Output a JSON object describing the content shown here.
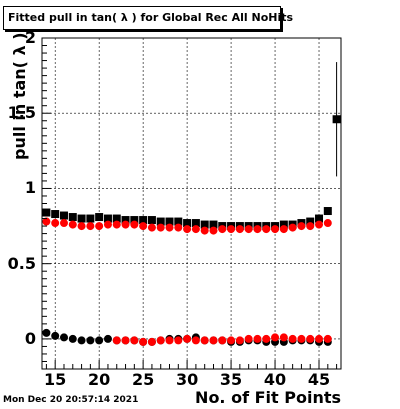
{
  "chart_data": {
    "type": "scatter",
    "title": "Fitted pull in tan( λ ) for Global Rec All NoHits",
    "xlabel": "No. of Fit Points",
    "ylabel": "pull in tan( λ )",
    "xlim": [
      13.5,
      47.5
    ],
    "ylim": [
      -0.2,
      2.0
    ],
    "x_ticks": [
      15,
      20,
      25,
      30,
      35,
      40,
      45
    ],
    "y_ticks": [
      0,
      0.5,
      1,
      1.5,
      2
    ],
    "y_tick_labels": [
      "0",
      "0.5",
      "1",
      "1.5",
      "2"
    ],
    "grid": true,
    "series": [
      {
        "color": "#000000",
        "marker": "square",
        "x": [
          14,
          15,
          16,
          17,
          18,
          19,
          20,
          21,
          22,
          23,
          24,
          25,
          26,
          27,
          28,
          29,
          30,
          31,
          32,
          33,
          34,
          35,
          36,
          37,
          38,
          39,
          40,
          41,
          42,
          43,
          44,
          45,
          46
        ],
        "values": [
          0.84,
          0.83,
          0.82,
          0.81,
          0.8,
          0.8,
          0.81,
          0.8,
          0.8,
          0.79,
          0.79,
          0.79,
          0.79,
          0.78,
          0.78,
          0.78,
          0.77,
          0.77,
          0.76,
          0.76,
          0.75,
          0.75,
          0.75,
          0.75,
          0.75,
          0.75,
          0.75,
          0.76,
          0.76,
          0.77,
          0.78,
          0.8,
          0.85
        ]
      },
      {
        "color": "#ff0000",
        "marker": "circle",
        "x": [
          14,
          15,
          16,
          17,
          18,
          19,
          20,
          21,
          22,
          23,
          24,
          25,
          26,
          27,
          28,
          29,
          30,
          31,
          32,
          33,
          34,
          35,
          36,
          37,
          38,
          39,
          40,
          41,
          42,
          43,
          44,
          45,
          46
        ],
        "values": [
          0.78,
          0.77,
          0.77,
          0.76,
          0.75,
          0.75,
          0.75,
          0.76,
          0.76,
          0.76,
          0.76,
          0.75,
          0.74,
          0.74,
          0.74,
          0.74,
          0.73,
          0.73,
          0.72,
          0.72,
          0.73,
          0.73,
          0.73,
          0.73,
          0.73,
          0.73,
          0.73,
          0.73,
          0.74,
          0.75,
          0.75,
          0.76,
          0.77
        ]
      },
      {
        "color": "#000000",
        "marker": "circle",
        "x": [
          14,
          15,
          16,
          17,
          18,
          19,
          20,
          21,
          22,
          23,
          24,
          25,
          26,
          27,
          28,
          29,
          30,
          31,
          32,
          33,
          34,
          35,
          36,
          37,
          38,
          39,
          40,
          41,
          42,
          43,
          44,
          45,
          46
        ],
        "values": [
          0.04,
          0.02,
          0.01,
          0.0,
          -0.01,
          -0.01,
          -0.01,
          0.0,
          -0.01,
          -0.01,
          -0.01,
          -0.02,
          -0.02,
          -0.01,
          0.0,
          0.0,
          0.0,
          0.01,
          -0.01,
          -0.01,
          -0.01,
          -0.02,
          -0.02,
          -0.01,
          -0.01,
          -0.02,
          -0.02,
          -0.02,
          -0.01,
          -0.01,
          -0.01,
          -0.02,
          -0.02
        ]
      },
      {
        "color": "#ff0000",
        "marker": "circle",
        "x": [
          22,
          23,
          24,
          25,
          26,
          27,
          28,
          29,
          30,
          31,
          32,
          33,
          34,
          35,
          36,
          37,
          38,
          39,
          40,
          41,
          42,
          43,
          44,
          45,
          46
        ],
        "values": [
          -0.01,
          -0.01,
          -0.01,
          -0.02,
          -0.02,
          -0.01,
          -0.01,
          -0.01,
          0.0,
          -0.01,
          -0.01,
          -0.01,
          -0.01,
          -0.01,
          -0.01,
          0.0,
          0.0,
          0.0,
          0.01,
          0.01,
          0.0,
          0.0,
          0.0,
          0.0,
          0.0
        ]
      },
      {
        "color": "#000000",
        "marker": "square",
        "x": [
          47
        ],
        "values": [
          1.46
        ],
        "yerr": [
          0.38
        ]
      }
    ]
  },
  "footer": {
    "timestamp": "Mon Dec 20 20:57:14 2021"
  }
}
